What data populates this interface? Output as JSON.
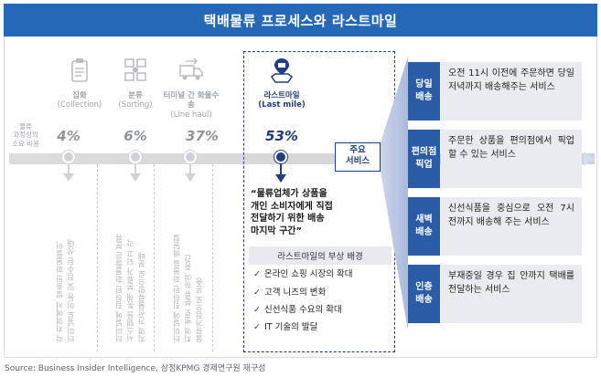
{
  "title": "택배물류 프로세스와 라스트마일",
  "side_label": "물류\n과정상의\n소요 비용",
  "stages": [
    {
      "name": "집화",
      "en": "(Collection)",
      "pct": "4%",
      "desc": "각 지역에서 발송된 화물들이\n터미널로 이동 및 접수된 상태",
      "icon": "box-clipboard-icon"
    },
    {
      "name": "분류",
      "en": "(Sorting)",
      "pct": "6%",
      "desc": "터미널에 집하된 화물들은 분류\n시스템을 통해 분류가 되고 각\n지역 간선물류망으로 분배",
      "icon": "sorting-icon"
    },
    {
      "name": "터미널 간 화물수송",
      "en": "(Line haul)",
      "pct": "37%",
      "desc": "터미널에 집하된 화물을 배달할\n지역 별로 분류 하여 중간\n물류거점으로 운송",
      "icon": "truck-icon"
    }
  ],
  "last_mile": {
    "name": "라스트마일",
    "en": "(Last mile)",
    "pct": "53%",
    "icon": "map-pin-truck-icon",
    "quote": "“물류업체가 상품을\n개인 소비자에게 직접\n전달하기 위한 배송\n마지막 구간”",
    "background_title": "라스트마일의 부상 배경",
    "background_items": [
      "온라인 쇼핑 시장의 확대",
      "고객 니즈의 변화",
      "신선식품 수요의 확대",
      "IT 기술의 발달"
    ]
  },
  "main_services_label": "주요\n서비스",
  "services": [
    {
      "tag": "당일\n배송",
      "desc": "오전 11시 이전에 주문하면 당일 저녁까지 배송해주는 서비스"
    },
    {
      "tag": "편의점\n픽업",
      "desc": "주문한 상품을 편의점에서 픽업할 수 있는 서비스"
    },
    {
      "tag": "새벽\n배송",
      "desc": "신선식품을 중심으로 오전 7시 전까지 배송해 주는 서비스"
    },
    {
      "tag": "인층\n배송",
      "desc": "부재중일 경우 집 안까지 택배를 전달하는 서비스"
    }
  ],
  "source": "Source: Business Insider Intelligence, 삼정KPMG 경제연구원 재구성",
  "colors": {
    "title_bg": "#2468b7",
    "navy": "#1f3f7d",
    "service_tag": "#2a5ca8",
    "grey_text": "#9ea3aa"
  }
}
